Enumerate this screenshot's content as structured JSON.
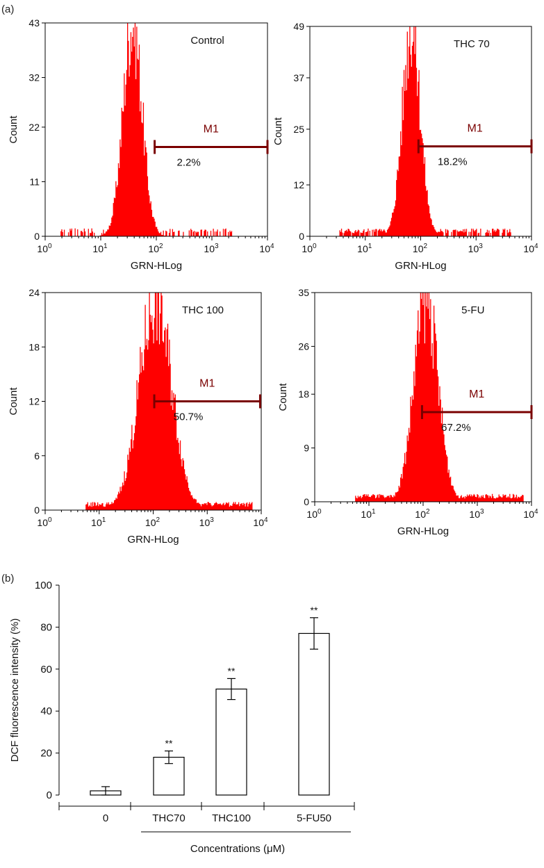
{
  "panel_labels": {
    "a": "(a)",
    "b": "(b)"
  },
  "marker_color": "#7a0000",
  "hist_color": "#ff0000",
  "chart_data": [
    {
      "type": "histogram",
      "title": "Control",
      "xlabel": "GRN-HLog",
      "ylabel": "Count",
      "xscale": "log",
      "xlim": [
        1,
        10000
      ],
      "xticks": [
        {
          "base": "10",
          "exp": "0"
        },
        {
          "base": "10",
          "exp": "1"
        },
        {
          "base": "10",
          "exp": "2"
        },
        {
          "base": "10",
          "exp": "3"
        },
        {
          "base": "10",
          "exp": "4"
        }
      ],
      "ylim": [
        0,
        43
      ],
      "yticks": [
        "0",
        "11",
        "22",
        "32",
        "43"
      ],
      "peak": {
        "log_center": 1.58,
        "log_width": 0.17,
        "height": 43,
        "tail": 0.01
      },
      "marker": {
        "label": "M1",
        "percent": "2.2%",
        "log_start": 1.97,
        "log_end": 4.0,
        "y": 18
      }
    },
    {
      "type": "histogram",
      "title": "THC 70",
      "xlabel": "GRN-HLog",
      "ylabel": "Count",
      "xscale": "log",
      "xlim": [
        1,
        10000
      ],
      "xticks": [
        {
          "base": "10",
          "exp": "0"
        },
        {
          "base": "10",
          "exp": "1"
        },
        {
          "base": "10",
          "exp": "2"
        },
        {
          "base": "10",
          "exp": "3"
        },
        {
          "base": "10",
          "exp": "4"
        }
      ],
      "ylim": [
        0,
        49
      ],
      "yticks": [
        "0",
        "12",
        "25",
        "37",
        "49"
      ],
      "peak": {
        "log_center": 1.84,
        "log_width": 0.16,
        "height": 49,
        "tail": 0.02
      },
      "marker": {
        "label": "M1",
        "percent": "18.2%",
        "log_start": 1.96,
        "log_end": 4.0,
        "y": 21
      }
    },
    {
      "type": "histogram",
      "title": "THC 100",
      "xlabel": "GRN-HLog",
      "ylabel": "Count",
      "xscale": "log",
      "xlim": [
        1,
        10000
      ],
      "xticks": [
        {
          "base": "10",
          "exp": "0"
        },
        {
          "base": "10",
          "exp": "1"
        },
        {
          "base": "10",
          "exp": "2"
        },
        {
          "base": "10",
          "exp": "3"
        },
        {
          "base": "10",
          "exp": "4"
        }
      ],
      "ylim": [
        0,
        24
      ],
      "yticks": [
        "0",
        "6",
        "12",
        "18",
        "24"
      ],
      "peak": {
        "log_center": 2.05,
        "log_width": 0.3,
        "height": 23,
        "tail": 0.03
      },
      "marker": {
        "label": "M1",
        "percent": "50.7%",
        "log_start": 2.02,
        "log_end": 3.98,
        "y": 12
      }
    },
    {
      "type": "histogram",
      "title": "5-FU",
      "xlabel": "GRN-HLog",
      "ylabel": "Count",
      "xscale": "log",
      "xlim": [
        1,
        10000
      ],
      "xticks": [
        {
          "base": "10",
          "exp": "0"
        },
        {
          "base": "10",
          "exp": "1"
        },
        {
          "base": "10",
          "exp": "2"
        },
        {
          "base": "10",
          "exp": "3"
        },
        {
          "base": "10",
          "exp": "4"
        }
      ],
      "ylim": [
        0,
        35
      ],
      "yticks": [
        "0",
        "9",
        "18",
        "26",
        "35"
      ],
      "peak": {
        "log_center": 2.06,
        "log_width": 0.22,
        "height": 34,
        "tail": 0.05
      },
      "marker": {
        "label": "M1",
        "percent": "67.2%",
        "log_start": 1.98,
        "log_end": 4.0,
        "y": 15
      }
    },
    {
      "type": "bar",
      "xlabel": "Concentrations (μM)",
      "ylabel": "DCF fluorescence intensity (%)",
      "ylim": [
        0,
        100
      ],
      "yticks": [
        "0",
        "20",
        "40",
        "60",
        "80",
        "100"
      ],
      "categories": [
        "0",
        "THC70",
        "THC100",
        "5-FU50"
      ],
      "values": [
        2,
        18,
        50.5,
        77
      ],
      "errors": [
        2,
        3,
        5,
        7.5
      ],
      "significance": [
        "",
        "**",
        "**",
        "**"
      ]
    }
  ]
}
